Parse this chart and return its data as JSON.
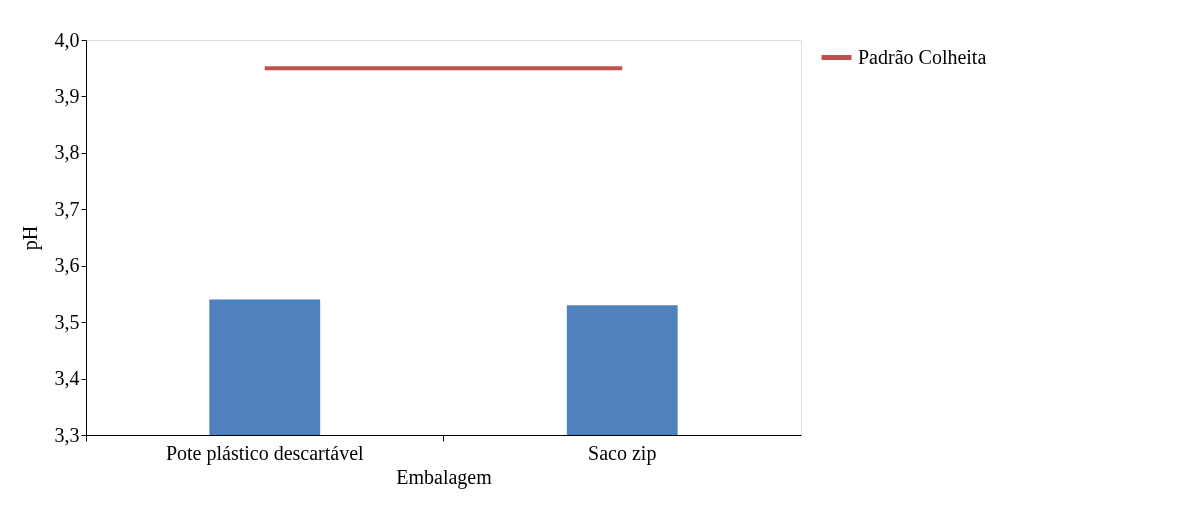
{
  "chart_data": {
    "type": "bar",
    "xlabel": "Embalagem",
    "ylabel": "pH",
    "categories": [
      "Pote plástico descartável",
      "Saco zip"
    ],
    "series": [
      {
        "color": "#4f81bd",
        "values": [
          3.54,
          3.53
        ]
      },
      {
        "name": "Padrão Colheita",
        "type": "line",
        "color": "#c0504d",
        "values": [
          3.95,
          3.95
        ]
      }
    ],
    "ylim": [
      3.3,
      4.0
    ],
    "yticks": [
      {
        "value": 3.3,
        "label": "3,3"
      },
      {
        "value": 3.4,
        "label": "3,4"
      },
      {
        "value": 3.5,
        "label": "3,5"
      },
      {
        "value": 3.6,
        "label": "3,6"
      },
      {
        "value": 3.7,
        "label": "3,7"
      },
      {
        "value": 3.8,
        "label": "3,8"
      },
      {
        "value": 3.9,
        "label": "3,9"
      },
      {
        "value": 4.0,
        "label": "4,0"
      }
    ],
    "grid": false,
    "legend": "right"
  }
}
